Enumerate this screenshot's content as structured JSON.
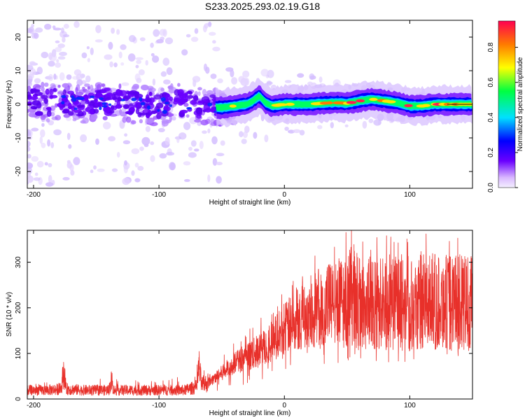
{
  "figure_title": "S233.2025.293.02.19.G18",
  "chart_data": [
    {
      "type": "heatmap",
      "title": "S233.2025.293.02.19.G18",
      "xlabel": "Height of straight line (km)",
      "ylabel": "Frequency (Hz)",
      "xlim": [
        -205,
        150
      ],
      "ylim": [
        -25,
        25
      ],
      "x_ticks": [
        -200,
        -100,
        0,
        100
      ],
      "y_ticks": [
        -20,
        -10,
        0,
        10,
        20
      ],
      "colorbar": {
        "label": "Normalized spectral amplitude",
        "range": [
          0,
          0.95
        ],
        "ticks": [
          0.0,
          0.2,
          0.4,
          0.6,
          0.8
        ],
        "tick_labels": [
          "0.0",
          "0.2",
          "0.4",
          "0.6",
          "0.8"
        ],
        "colormap": [
          "#f4f0ff",
          "#6a00ff",
          "#0000ff",
          "#00e0ff",
          "#00ff40",
          "#ffff00",
          "#ff7a00",
          "#ff0050"
        ]
      },
      "ridge_frequency": {
        "x": [
          -200,
          -180,
          -160,
          -140,
          -120,
          -100,
          -80,
          -60,
          -50,
          -40,
          -30,
          -25,
          -20,
          -15,
          -10,
          0,
          10,
          20,
          30,
          40,
          50,
          60,
          70,
          80,
          90,
          100,
          110,
          120,
          130,
          150
        ],
        "y": [
          0.5,
          0.8,
          0.2,
          1.0,
          0.0,
          -0.5,
          0.5,
          -1.0,
          -1.0,
          -0.5,
          0.0,
          1.0,
          2.5,
          0.5,
          -0.5,
          0.0,
          0.0,
          0.0,
          0.3,
          0.5,
          0.3,
          1.0,
          1.5,
          1.0,
          0.5,
          -0.5,
          -0.5,
          0.0,
          0.0,
          0.0
        ]
      },
      "reference_line": {
        "x": [
          130,
          150
        ],
        "y": [
          0,
          0
        ]
      }
    },
    {
      "type": "line",
      "xlabel": "Height of straight line (km)",
      "ylabel": "SNR (10 * v/v)",
      "xlim": [
        -205,
        150
      ],
      "ylim": [
        0,
        370
      ],
      "x_ticks": [
        -200,
        -100,
        0,
        100
      ],
      "y_ticks": [
        0,
        100,
        200,
        300
      ],
      "series": [
        {
          "name": "SNR",
          "color": "#e8302a",
          "x": [
            -205,
            -190,
            -178,
            -176,
            -174,
            -160,
            -140,
            -138,
            -136,
            -120,
            -100,
            -80,
            -70,
            -68,
            -66,
            -60,
            -50,
            -40,
            -30,
            -20,
            -10,
            0,
            10,
            20,
            30,
            40,
            50,
            55,
            60,
            70,
            80,
            90,
            100,
            110,
            120,
            130,
            140,
            150
          ],
          "y": [
            22,
            22,
            25,
            72,
            25,
            22,
            22,
            45,
            22,
            22,
            22,
            22,
            30,
            80,
            35,
            42,
            65,
            90,
            105,
            125,
            150,
            180,
            210,
            230,
            245,
            255,
            262,
            290,
            255,
            262,
            262,
            265,
            262,
            262,
            262,
            262,
            262,
            262
          ]
        }
      ]
    }
  ]
}
